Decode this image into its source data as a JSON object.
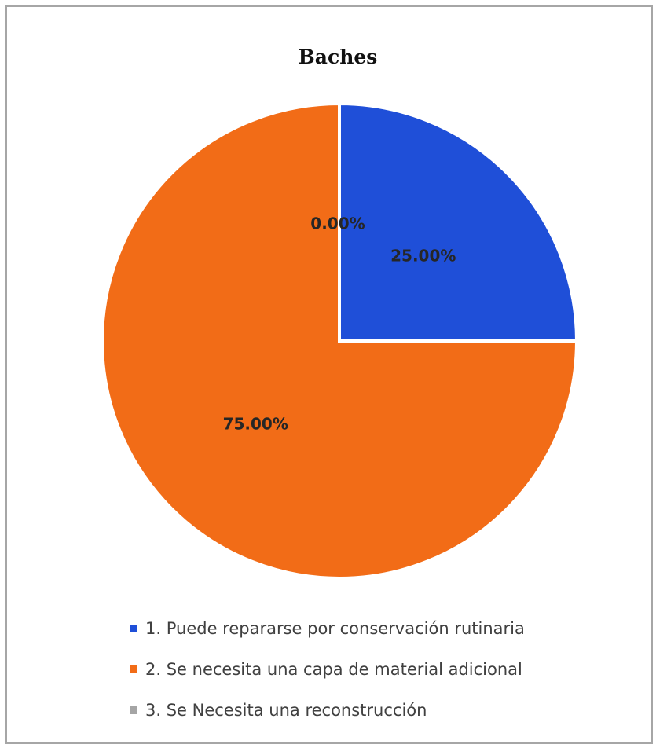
{
  "chart_data": {
    "type": "pie",
    "title": "Baches",
    "categories": [
      "1. Puede repararse por conservación rutinaria",
      "2. Se necesita una capa de material adicional",
      "3. Se Necesita una reconstrucción"
    ],
    "values": [
      25.0,
      75.0,
      0.0
    ],
    "data_labels": [
      "25.00%",
      "75.00%",
      "0.00%"
    ],
    "colors": [
      "#1f4fd8",
      "#f26c17",
      "#a5a5a5"
    ],
    "legend_position": "bottom"
  }
}
